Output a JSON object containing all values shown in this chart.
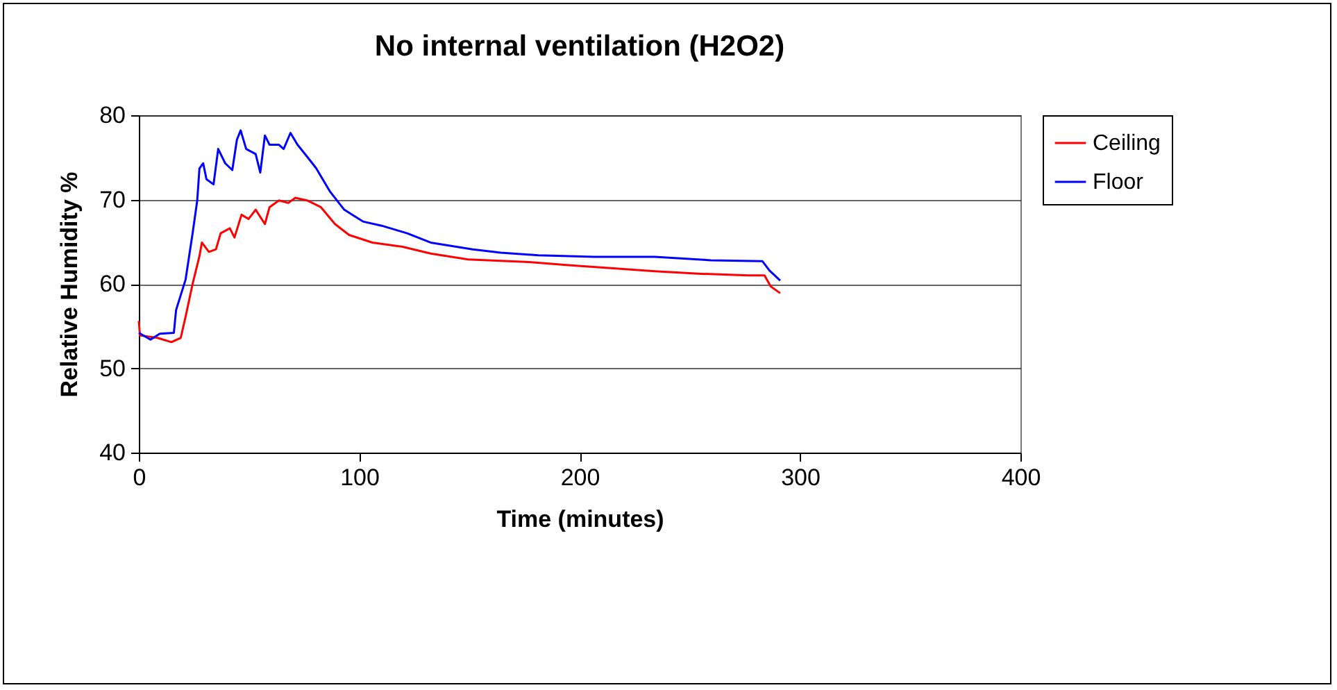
{
  "chart_data": {
    "type": "line",
    "title": "No internal ventilation (H2O2)",
    "xlabel": "Time (minutes)",
    "ylabel": "Relative Humidity %",
    "xlim": [
      0,
      400
    ],
    "xticks": [
      0,
      100,
      200,
      300,
      400
    ],
    "ylim": [
      40,
      80
    ],
    "yticks": [
      40,
      50,
      60,
      70,
      80
    ],
    "grid": "y",
    "legend": "right",
    "marker": "none",
    "line_style": "solid",
    "series": [
      {
        "name": "Ceiling",
        "color": "#ff0000",
        "x": [
          0,
          0.5,
          8.5,
          14.8,
          19,
          21.2,
          24.4,
          27.5,
          28.6,
          31.8,
          35,
          37.1,
          41.3,
          43.4,
          46.6,
          49.8,
          53,
          57.2,
          59.3,
          63.6,
          67.8,
          71,
          76.3,
          82.6,
          89,
          95.4,
          106,
          119.7,
          132.4,
          149.4,
          177,
          196,
          213,
          234.1,
          255.3,
          276.5,
          283.9,
          286.7,
          291
        ],
        "values": [
          55.6,
          53.9,
          53.6,
          53.1,
          53.6,
          56.1,
          60,
          63.3,
          64.9,
          63.8,
          64.1,
          66,
          66.6,
          65.5,
          68.2,
          67.7,
          68.8,
          67.1,
          69.1,
          69.9,
          69.6,
          70.2,
          69.9,
          69.1,
          67.1,
          65.8,
          64.9,
          64.4,
          63.6,
          62.9,
          62.6,
          62.2,
          61.9,
          61.5,
          61.2,
          61,
          61,
          59.7,
          58.9
        ]
      },
      {
        "name": "Floor",
        "color": "#0000ff",
        "x": [
          0,
          5.3,
          9.5,
          15.9,
          16.9,
          21.2,
          24.4,
          26.5,
          27.5,
          29.2,
          30.7,
          33.9,
          36,
          39.2,
          42.4,
          44.5,
          46.2,
          48.7,
          53,
          55.1,
          57.2,
          59.3,
          63.6,
          65.7,
          68.8,
          72,
          76.3,
          80.5,
          86.6,
          93.2,
          101.7,
          110.2,
          121.8,
          132.4,
          151.5,
          164.2,
          181.2,
          206.6,
          234.1,
          259.6,
          282.9,
          286.1,
          291
        ],
        "values": [
          54.2,
          53.4,
          54.1,
          54.2,
          56.9,
          60.5,
          66,
          69.9,
          73.7,
          74.3,
          72.4,
          71.8,
          76,
          74.3,
          73.5,
          77.1,
          78.2,
          76,
          75.4,
          73.2,
          77.6,
          76.5,
          76.5,
          76,
          77.9,
          76.5,
          75.1,
          73.7,
          71,
          68.8,
          67.4,
          66.9,
          66,
          64.9,
          64.1,
          63.7,
          63.4,
          63.2,
          63.2,
          62.8,
          62.7,
          61.6,
          60.4
        ]
      }
    ]
  }
}
